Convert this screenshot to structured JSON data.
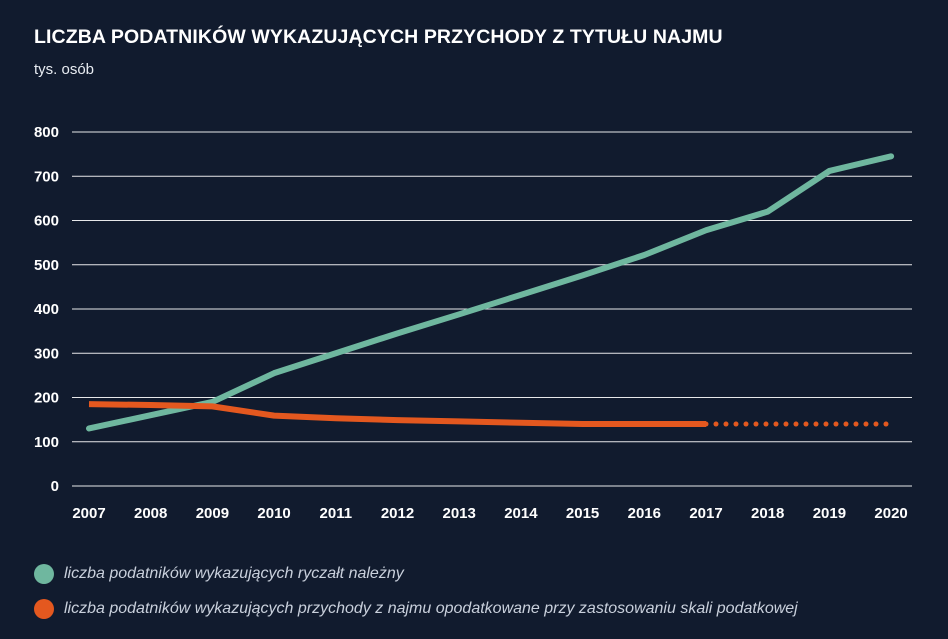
{
  "header": {
    "title": "LICZBA PODATNIKÓW WYKAZUJĄCYCH PRZYCHODY Z TYTUŁU NAJMU",
    "subtitle": "tys. osób"
  },
  "colors": {
    "background": "#111b2e",
    "grid": "#ffffff",
    "series_green": "#6fb79f",
    "series_orange": "#e4581f"
  },
  "chart_data": {
    "type": "line",
    "title": "LICZBA PODATNIKÓW WYKAZUJĄCYCH PRZYCHODY Z TYTUŁU NAJMU",
    "ylabel": "tys. osób",
    "x": [
      "2007",
      "2008",
      "2009",
      "2010",
      "2011",
      "2012",
      "2013",
      "2014",
      "2015",
      "2016",
      "2017",
      "2018",
      "2019",
      "2020"
    ],
    "ylim": [
      0,
      800
    ],
    "yticks": [
      "0",
      "100",
      "200",
      "300",
      "400",
      "500",
      "600",
      "700",
      "800"
    ],
    "grid": true,
    "legend_position": "bottom-left",
    "series": [
      {
        "name": "liczba podatników wykazujących ryczałt należny",
        "color": "#6fb79f",
        "style": "solid",
        "values": [
          130,
          160,
          190,
          255,
          300,
          345,
          388,
          432,
          476,
          522,
          578,
          620,
          712,
          745
        ]
      },
      {
        "name": "liczba podatników wykazujących przychody z najmu opodatkowane przy zastosowaniu skali podatkowej",
        "color": "#e4581f",
        "style": "solid-then-dotted",
        "values": [
          185,
          183,
          180,
          159,
          153,
          149,
          146,
          143,
          140,
          140,
          140,
          140,
          140,
          140
        ],
        "dotted_from": "2017"
      }
    ]
  }
}
